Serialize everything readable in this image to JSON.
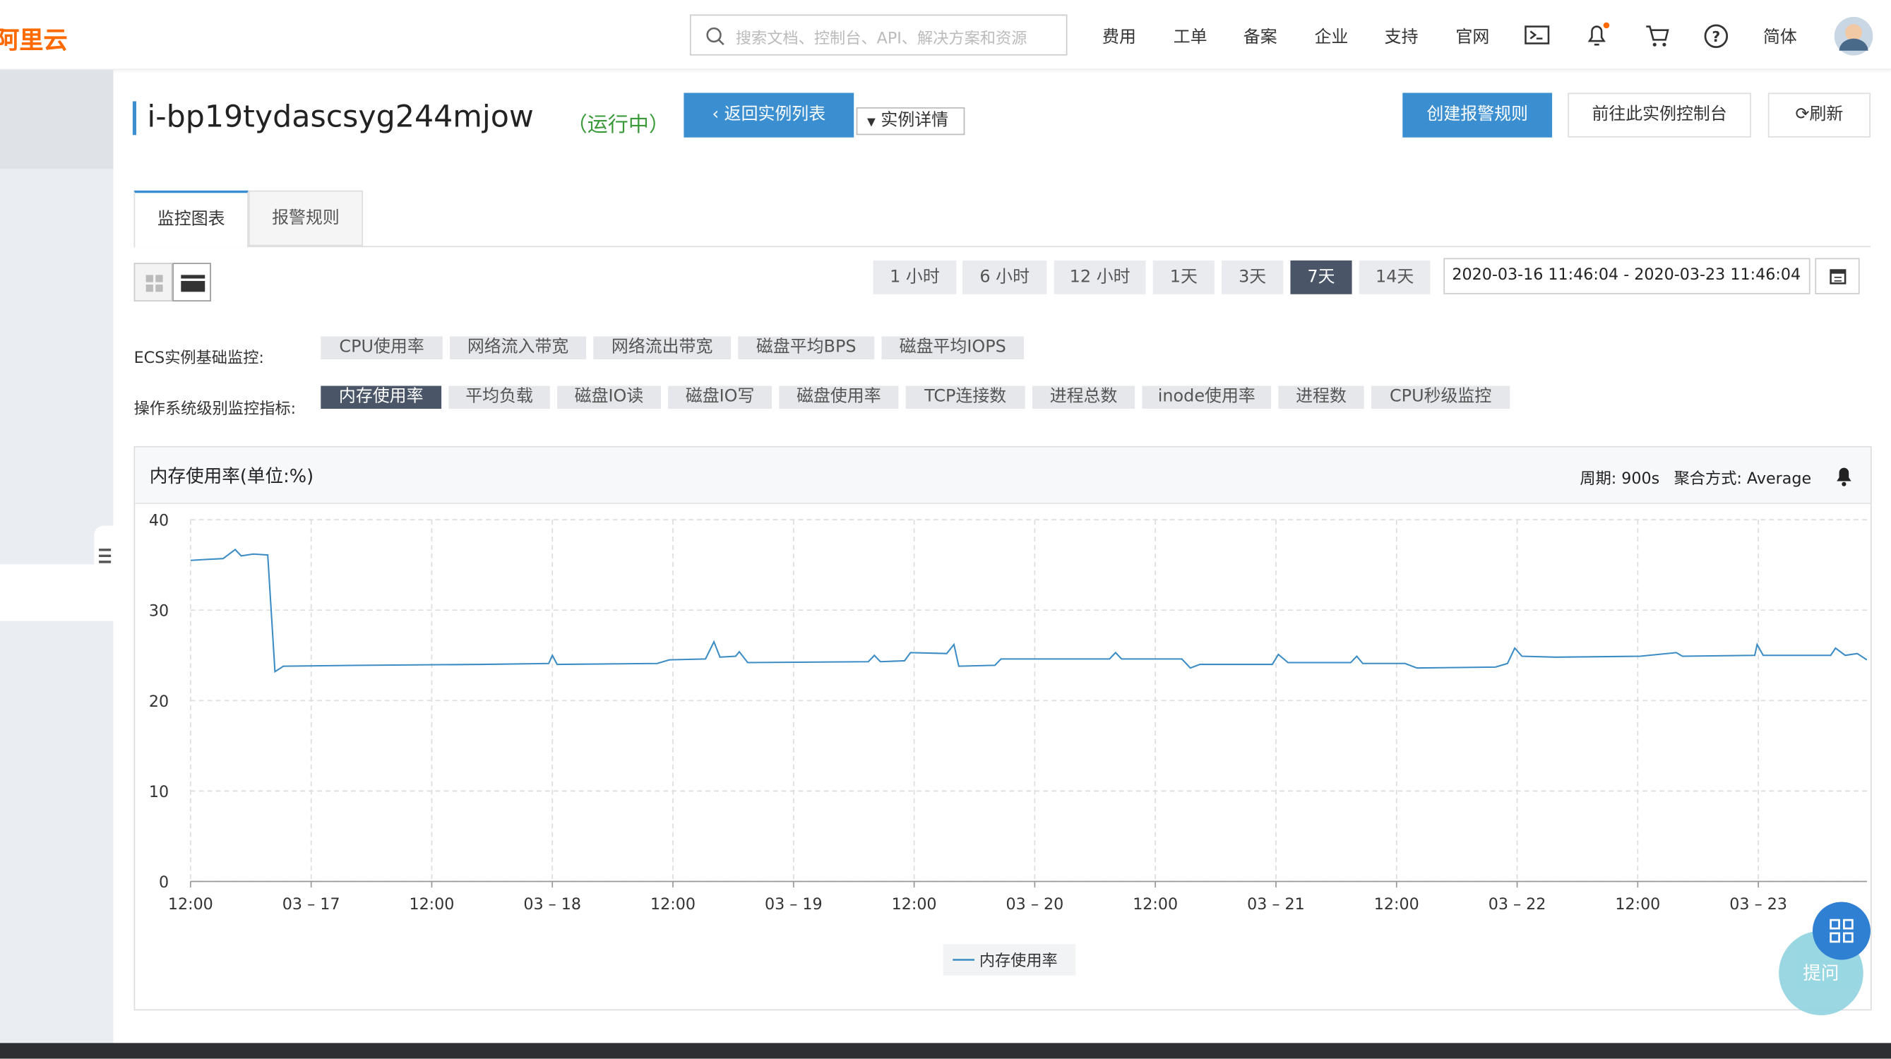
{
  "header": {
    "logo": "阿里云",
    "search_placeholder": "搜索文档、控制台、API、解决方案和资源",
    "nav": [
      "费用",
      "工单",
      "备案",
      "企业",
      "支持",
      "官网"
    ],
    "language": "简体"
  },
  "instance": {
    "id": "i-bp19tydascsyg244mjow",
    "status": "（运行中）",
    "back_button": "返回实例列表",
    "details_dropdown": "实例详情"
  },
  "actions": [
    "创建报警规则",
    "前往此实例控制台",
    "刷新"
  ],
  "tabs": [
    "监控图表",
    "报警规则"
  ],
  "time_ranges": [
    "1 小时",
    "6 小时",
    "12 小时",
    "1天",
    "3天",
    "7天",
    "14天"
  ],
  "date_range": "2020-03-16 11:46:04 - 2020-03-23 11:46:04",
  "basic_metrics": {
    "label": "ECS实例基础监控:",
    "items": [
      "CPU使用率",
      "网络流入带宽",
      "网络流出带宽",
      "磁盘平均BPS",
      "磁盘平均IOPS"
    ]
  },
  "os_metrics": {
    "label": "操作系统级别监控指标:",
    "items": [
      "内存使用率",
      "平均负载",
      "磁盘IO读",
      "磁盘IO写",
      "磁盘使用率",
      "TCP连接数",
      "进程总数",
      "inode使用率",
      "进程数",
      "CPU秒级监控"
    ]
  },
  "chart_data": {
    "type": "line",
    "title": "内存使用率(单位:%)",
    "period": "周期: 900s",
    "aggregation": "聚合方式: Average",
    "x": [
      16.5,
      16.56,
      16.635,
      16.685,
      16.71,
      16.76,
      16.82,
      16.85,
      16.885,
      17.21,
      17.71,
      17.985,
      18.0,
      18.02,
      18.435,
      18.485,
      18.635,
      18.67,
      18.695,
      18.76,
      18.775,
      18.81,
      19.31,
      19.335,
      19.36,
      19.46,
      19.485,
      19.635,
      19.665,
      19.685,
      19.835,
      19.86,
      20.31,
      20.335,
      20.36,
      20.61,
      20.645,
      20.685,
      20.985,
      21.01,
      21.05,
      21.31,
      21.335,
      21.36,
      21.535,
      21.585,
      21.91,
      21.96,
      21.99,
      22.02,
      22.16,
      22.51,
      22.66,
      22.685,
      22.985,
      22.995,
      23.02,
      23.3,
      23.32,
      23.36,
      23.41,
      23.45
    ],
    "series": [
      {
        "name": "内存使用率",
        "color": "#3b8cc4",
        "values": [
          35.5,
          35.6,
          35.7,
          36.7,
          36.0,
          36.2,
          36.1,
          23.2,
          23.8,
          23.9,
          24.0,
          24.1,
          25.0,
          24.0,
          24.1,
          24.5,
          24.6,
          26.5,
          24.8,
          24.9,
          25.4,
          24.2,
          24.3,
          25.0,
          24.3,
          24.4,
          25.3,
          25.2,
          26.2,
          23.8,
          23.9,
          24.6,
          24.6,
          25.3,
          24.6,
          24.6,
          23.6,
          24.0,
          24.0,
          25.1,
          24.2,
          24.2,
          24.9,
          24.1,
          24.1,
          23.6,
          23.7,
          24.1,
          25.8,
          24.9,
          24.8,
          24.9,
          25.3,
          24.9,
          25.0,
          26.2,
          25.0,
          25.0,
          25.8,
          25.0,
          25.2,
          24.5
        ]
      }
    ],
    "xlim": [
      16.5,
      23.45
    ],
    "xticks": [
      {
        "value": 16.5,
        "label": "12:00"
      },
      {
        "value": 17,
        "label": "03 – 17"
      },
      {
        "value": 17.5,
        "label": "12:00"
      },
      {
        "value": 18,
        "label": "03 – 18"
      },
      {
        "value": 18.5,
        "label": "12:00"
      },
      {
        "value": 19,
        "label": "03 – 19"
      },
      {
        "value": 19.5,
        "label": "12:00"
      },
      {
        "value": 20,
        "label": "03 – 20"
      },
      {
        "value": 20.5,
        "label": "12:00"
      },
      {
        "value": 21,
        "label": "03 – 21"
      },
      {
        "value": 21.5,
        "label": "12:00"
      },
      {
        "value": 22,
        "label": "03 – 22"
      },
      {
        "value": 22.5,
        "label": "12:00"
      },
      {
        "value": 23,
        "label": "03 – 23"
      }
    ],
    "ylim": [
      0,
      40
    ],
    "yticks": [
      0,
      10,
      20,
      30,
      40
    ],
    "grid": true
  },
  "help": {
    "ask": "提问"
  }
}
